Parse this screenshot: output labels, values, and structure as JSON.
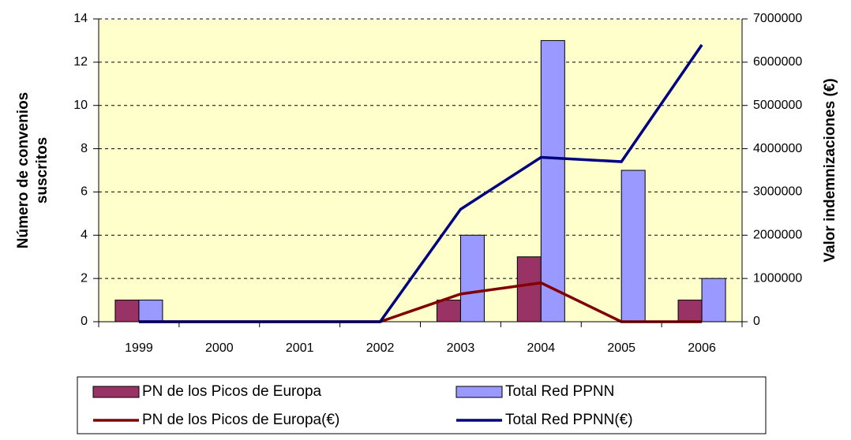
{
  "chart_data": {
    "type": "bar",
    "ylabel": [
      "Número de convenios",
      "suscritos"
    ],
    "y2label": "Valor indemnizaciones (€)",
    "categories": [
      "1999",
      "2000",
      "2001",
      "2002",
      "2003",
      "2004",
      "2005",
      "2006"
    ],
    "series": [
      {
        "name": "PN de los Picos de Europa",
        "type": "bar",
        "color": "#993366",
        "values": [
          1,
          0,
          0,
          0,
          1,
          3,
          0,
          1
        ]
      },
      {
        "name": "Total Red PPNN",
        "type": "bar",
        "color": "#9999ff",
        "values": [
          1,
          0,
          0,
          0,
          4,
          13,
          7,
          2
        ]
      },
      {
        "name": "PN de los Picos de Europa(€)",
        "type": "line",
        "axis": "y2",
        "color": "#800000",
        "values": [
          0,
          0,
          0,
          0,
          640000,
          900000,
          0,
          0
        ]
      },
      {
        "name": "Total Red PPNN(€)",
        "type": "line",
        "axis": "y2",
        "color": "#000080",
        "values": [
          0,
          0,
          0,
          0,
          2600000,
          3800000,
          3700000,
          6400000
        ]
      }
    ],
    "ylim": [
      0,
      14
    ],
    "yticks": [
      0,
      2,
      4,
      6,
      8,
      10,
      12,
      14
    ],
    "y2lim": [
      0,
      7000000
    ],
    "y2ticks": [
      0,
      1000000,
      2000000,
      3000000,
      4000000,
      5000000,
      6000000,
      7000000
    ],
    "grid": true,
    "plot_background": "#ffffcc",
    "legend": "bottom"
  }
}
